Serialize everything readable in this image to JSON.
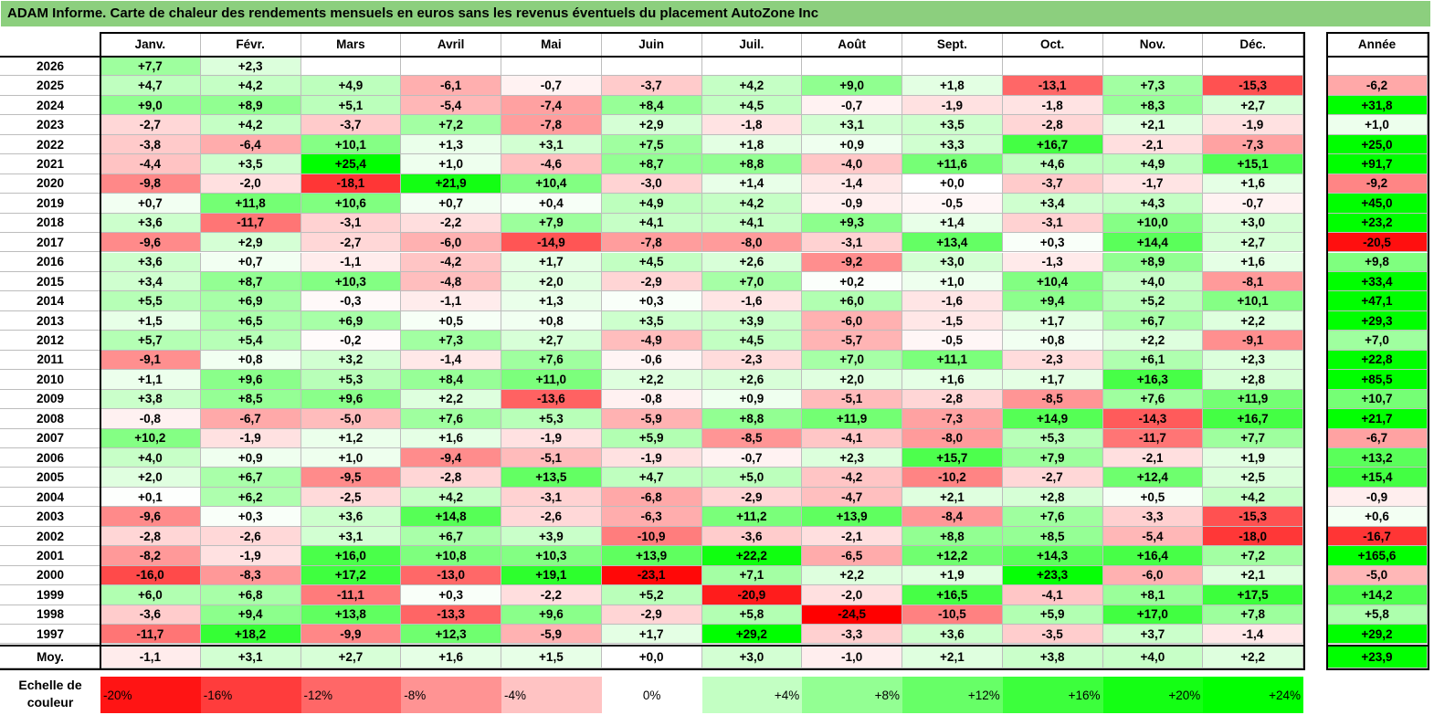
{
  "title": "ADAM Informe. Carte de chaleur des rendements mensuels en euros sans les revenus éventuels du placement AutoZone Inc",
  "chart_data": {
    "type": "heatmap",
    "title": "ADAM Informe. Carte de chaleur des rendements mensuels en euros sans les revenus éventuels du placement AutoZone Inc",
    "months": [
      "Janv.",
      "Févr.",
      "Mars",
      "Avril",
      "Mai",
      "Juin",
      "Juil.",
      "Août",
      "Sept.",
      "Oct.",
      "Nov.",
      "Déc."
    ],
    "year_header": "Année",
    "rows": [
      {
        "label": "2026",
        "values": [
          "+7,7",
          "+2,3",
          "",
          "",
          "",
          "",
          "",
          "",
          "",
          "",
          "",
          ""
        ],
        "year": ""
      },
      {
        "label": "2025",
        "values": [
          "+4,7",
          "+4,2",
          "+4,9",
          "-6,1",
          "-0,7",
          "-3,7",
          "+4,2",
          "+9,0",
          "+1,8",
          "-13,1",
          "+7,3",
          "-15,3"
        ],
        "year": "-6,2"
      },
      {
        "label": "2024",
        "values": [
          "+9,0",
          "+8,9",
          "+5,1",
          "-5,4",
          "-7,4",
          "+8,4",
          "+4,5",
          "-0,7",
          "-1,9",
          "-1,8",
          "+8,3",
          "+2,7"
        ],
        "year": "+31,8"
      },
      {
        "label": "2023",
        "values": [
          "-2,7",
          "+4,2",
          "-3,7",
          "+7,2",
          "-7,8",
          "+2,9",
          "-1,8",
          "+3,1",
          "+3,5",
          "-2,8",
          "+2,1",
          "-1,9"
        ],
        "year": "+1,0"
      },
      {
        "label": "2022",
        "values": [
          "-3,8",
          "-6,4",
          "+10,1",
          "+1,3",
          "+3,1",
          "+7,5",
          "+1,8",
          "+0,9",
          "+3,3",
          "+16,7",
          "-2,1",
          "-7,3"
        ],
        "year": "+25,0"
      },
      {
        "label": "2021",
        "values": [
          "-4,4",
          "+3,5",
          "+25,4",
          "+1,0",
          "-4,6",
          "+8,7",
          "+8,8",
          "-4,0",
          "+11,6",
          "+4,6",
          "+4,9",
          "+15,1"
        ],
        "year": "+91,7"
      },
      {
        "label": "2020",
        "values": [
          "-9,8",
          "-2,0",
          "-18,1",
          "+21,9",
          "+10,4",
          "-3,0",
          "+1,4",
          "-1,4",
          "+0,0",
          "-3,7",
          "-1,7",
          "+1,6"
        ],
        "year": "-9,2"
      },
      {
        "label": "2019",
        "values": [
          "+0,7",
          "+11,8",
          "+10,6",
          "+0,7",
          "+0,4",
          "+4,9",
          "+4,2",
          "-0,9",
          "-0,5",
          "+3,4",
          "+4,3",
          "-0,7"
        ],
        "year": "+45,0"
      },
      {
        "label": "2018",
        "values": [
          "+3,6",
          "-11,7",
          "-3,1",
          "-2,2",
          "+7,9",
          "+4,1",
          "+4,1",
          "+9,3",
          "+1,4",
          "-3,1",
          "+10,0",
          "+3,0"
        ],
        "year": "+23,2"
      },
      {
        "label": "2017",
        "values": [
          "-9,6",
          "+2,9",
          "-2,7",
          "-6,0",
          "-14,9",
          "-7,8",
          "-8,0",
          "-3,1",
          "+13,4",
          "+0,3",
          "+14,4",
          "+2,7"
        ],
        "year": "-20,5"
      },
      {
        "label": "2016",
        "values": [
          "+3,6",
          "+0,7",
          "-1,1",
          "-4,2",
          "+1,7",
          "+4,5",
          "+2,6",
          "-9,2",
          "+3,0",
          "-1,3",
          "+8,9",
          "+1,6"
        ],
        "year": "+9,8"
      },
      {
        "label": "2015",
        "values": [
          "+3,4",
          "+8,7",
          "+10,3",
          "-4,8",
          "+2,0",
          "-2,9",
          "+7,0",
          "+0,2",
          "+1,0",
          "+10,4",
          "+4,0",
          "-8,1"
        ],
        "year": "+33,4"
      },
      {
        "label": "2014",
        "values": [
          "+5,5",
          "+6,9",
          "-0,3",
          "-1,1",
          "+1,3",
          "+0,3",
          "-1,6",
          "+6,0",
          "-1,6",
          "+9,4",
          "+5,2",
          "+10,1"
        ],
        "year": "+47,1"
      },
      {
        "label": "2013",
        "values": [
          "+1,5",
          "+6,5",
          "+6,9",
          "+0,5",
          "+0,8",
          "+3,5",
          "+3,9",
          "-6,0",
          "-1,5",
          "+1,7",
          "+6,7",
          "+2,2"
        ],
        "year": "+29,3"
      },
      {
        "label": "2012",
        "values": [
          "+5,7",
          "+5,4",
          "-0,2",
          "+7,3",
          "+2,7",
          "-4,9",
          "+4,5",
          "-5,7",
          "-0,5",
          "+0,8",
          "+2,2",
          "-9,1"
        ],
        "year": "+7,0"
      },
      {
        "label": "2011",
        "values": [
          "-9,1",
          "+0,8",
          "+3,2",
          "-1,4",
          "+7,6",
          "-0,6",
          "-2,3",
          "+7,0",
          "+11,1",
          "-2,3",
          "+6,1",
          "+2,3"
        ],
        "year": "+22,8"
      },
      {
        "label": "2010",
        "values": [
          "+1,1",
          "+9,6",
          "+5,3",
          "+8,4",
          "+11,0",
          "+2,2",
          "+2,6",
          "+2,0",
          "+1,6",
          "+1,7",
          "+16,3",
          "+2,8"
        ],
        "year": "+85,5"
      },
      {
        "label": "2009",
        "values": [
          "+3,8",
          "+8,5",
          "+9,6",
          "+2,2",
          "-13,6",
          "-0,8",
          "+0,9",
          "-5,1",
          "-2,8",
          "-8,5",
          "+7,6",
          "+11,9"
        ],
        "year": "+10,7"
      },
      {
        "label": "2008",
        "values": [
          "-0,8",
          "-6,7",
          "-5,0",
          "+7,6",
          "+5,3",
          "-5,9",
          "+8,8",
          "+11,9",
          "-7,3",
          "+14,9",
          "-14,3",
          "+16,7"
        ],
        "year": "+21,7"
      },
      {
        "label": "2007",
        "values": [
          "+10,2",
          "-1,9",
          "+1,2",
          "+1,6",
          "-1,9",
          "+5,9",
          "-8,5",
          "-4,1",
          "-8,0",
          "+5,3",
          "-11,7",
          "+7,7"
        ],
        "year": "-6,7"
      },
      {
        "label": "2006",
        "values": [
          "+4,0",
          "+0,9",
          "+1,0",
          "-9,4",
          "-5,1",
          "-1,9",
          "-0,7",
          "+2,3",
          "+15,7",
          "+7,9",
          "-2,1",
          "+1,9"
        ],
        "year": "+13,2"
      },
      {
        "label": "2005",
        "values": [
          "+2,0",
          "+6,7",
          "-9,5",
          "-2,8",
          "+13,5",
          "+4,7",
          "+5,0",
          "-4,2",
          "-10,2",
          "-2,7",
          "+12,4",
          "+2,5"
        ],
        "year": "+15,4"
      },
      {
        "label": "2004",
        "values": [
          "+0,1",
          "+6,2",
          "-2,5",
          "+4,2",
          "-3,1",
          "-6,8",
          "-2,9",
          "-4,7",
          "+2,1",
          "+2,8",
          "+0,5",
          "+4,2"
        ],
        "year": "-0,9"
      },
      {
        "label": "2003",
        "values": [
          "-9,6",
          "+0,3",
          "+3,6",
          "+14,8",
          "-2,6",
          "-6,3",
          "+11,2",
          "+13,9",
          "-8,4",
          "+7,6",
          "-3,3",
          "-15,3"
        ],
        "year": "+0,6"
      },
      {
        "label": "2002",
        "values": [
          "-2,8",
          "-2,6",
          "+3,1",
          "+6,7",
          "+3,9",
          "-10,9",
          "-3,6",
          "-2,1",
          "+8,8",
          "+8,5",
          "-5,4",
          "-18,0"
        ],
        "year": "-16,7"
      },
      {
        "label": "2001",
        "values": [
          "-8,2",
          "-1,9",
          "+16,0",
          "+10,8",
          "+10,3",
          "+13,9",
          "+22,2",
          "-6,5",
          "+12,2",
          "+14,3",
          "+16,4",
          "+7,2"
        ],
        "year": "+165,6"
      },
      {
        "label": "2000",
        "values": [
          "-16,0",
          "-8,3",
          "+17,2",
          "-13,0",
          "+19,1",
          "-23,1",
          "+7,1",
          "+2,2",
          "+1,9",
          "+23,3",
          "-6,0",
          "+2,1"
        ],
        "year": "-5,0"
      },
      {
        "label": "1999",
        "values": [
          "+6,0",
          "+6,8",
          "-11,1",
          "+0,3",
          "-2,2",
          "+5,2",
          "-20,9",
          "-2,0",
          "+16,5",
          "-4,1",
          "+8,1",
          "+17,5"
        ],
        "year": "+14,2"
      },
      {
        "label": "1998",
        "values": [
          "-3,6",
          "+9,4",
          "+13,8",
          "-13,3",
          "+9,6",
          "-2,9",
          "+5,8",
          "-24,5",
          "-10,5",
          "+5,9",
          "+17,0",
          "+7,8"
        ],
        "year": "+5,8"
      },
      {
        "label": "1997",
        "values": [
          "-11,7",
          "+18,2",
          "-9,9",
          "+12,3",
          "-5,9",
          "+1,7",
          "+29,2",
          "-3,3",
          "+3,6",
          "-3,5",
          "+3,7",
          "-1,4"
        ],
        "year": "+29,2"
      }
    ],
    "average": {
      "label": "Moy.",
      "values": [
        "-1,1",
        "+3,1",
        "+2,7",
        "+1,6",
        "+1,5",
        "+0,0",
        "+3,0",
        "-1,0",
        "+2,1",
        "+3,8",
        "+4,0",
        "+2,2"
      ],
      "year": "+23,9"
    },
    "legend": {
      "label": "Echelle de couleur",
      "steps": [
        "-20%",
        "-16%",
        "-12%",
        "-8%",
        "-4%",
        "0%",
        "+4%",
        "+8%",
        "+12%",
        "+16%",
        "+20%",
        "+24%"
      ],
      "step_values": [
        -20,
        -16,
        -12,
        -8,
        -4,
        0,
        4,
        8,
        12,
        16,
        20,
        24
      ]
    },
    "colors": {
      "negative": "#ff0000",
      "neutral": "#ffffff",
      "positive": "#00ff00"
    }
  }
}
